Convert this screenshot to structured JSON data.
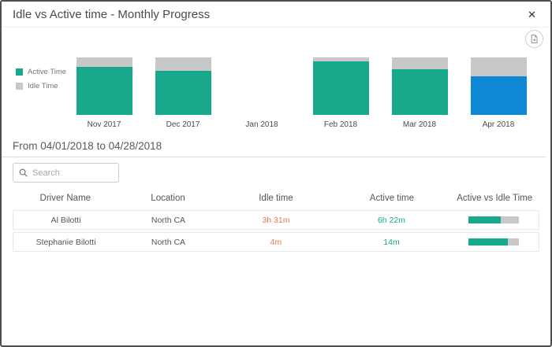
{
  "dialog": {
    "title": "Idle vs Active time - Monthly Progress",
    "close_glyph": "✕"
  },
  "colors": {
    "active_teal": "#18a88c",
    "idle_gray": "#c8c8c8",
    "selected_blue": "#0e87d5",
    "idle_text_orange": "#e8764f"
  },
  "chart_data": {
    "type": "bar",
    "stacked": true,
    "title": "Idle vs Active time - Monthly Progress",
    "categories": [
      "Nov 2017",
      "Dec 2017",
      "Jan 2018",
      "Feb 2018",
      "Mar 2018",
      "Apr 2018"
    ],
    "series": [
      {
        "name": "Active Time",
        "values_pct": [
          84,
          77,
          0,
          93,
          79,
          67
        ]
      },
      {
        "name": "Idle Time",
        "values_pct": [
          16,
          23,
          0,
          7,
          21,
          33
        ]
      }
    ],
    "selected_category": "Apr 2018",
    "legend_position": "left",
    "legend": [
      {
        "label": "Active Time",
        "color": "#18a88c"
      },
      {
        "label": "Idle Time",
        "color": "#c8c8c8"
      }
    ],
    "colors": {
      "active": "#18a88c",
      "idle": "#c8c8c8",
      "selected_active": "#0e87d5"
    }
  },
  "filter": {
    "date_range": "From 04/01/2018 to 04/28/2018"
  },
  "search": {
    "placeholder": "Search"
  },
  "table": {
    "headers": [
      "Driver Name",
      "Location",
      "Idle time",
      "Active time",
      "Active vs Idle Time"
    ],
    "rows": [
      {
        "driver": "Al Bilotti",
        "location": "North CA",
        "idle": "3h 31m",
        "active": "6h 22m",
        "active_pct": 64
      },
      {
        "driver": "Stephanie Bilotti",
        "location": "North CA",
        "idle": "4m",
        "active": "14m",
        "active_pct": 78
      }
    ]
  }
}
